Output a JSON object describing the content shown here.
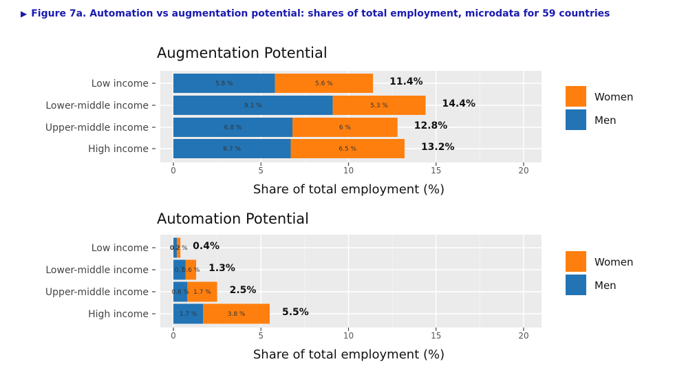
{
  "figure": {
    "title": "Figure 7a. Automation vs augmentation potential: shares of total employment, microdata for 59 countries",
    "marker_icon": "triangle-right-icon"
  },
  "colors": {
    "men": "#2274b5",
    "women": "#ff7f0e",
    "panel_bg": "#ebebeb",
    "grid": "#ffffff"
  },
  "chart_data": [
    {
      "type": "bar",
      "orientation": "horizontal",
      "stacked": true,
      "title": "Augmentation Potential",
      "xlabel": "Share of total employment (%)",
      "ylabel": "",
      "xlim": [
        0,
        20
      ],
      "xticks": [
        "0",
        "5",
        "10",
        "15",
        "20"
      ],
      "categories": [
        "Low income",
        "Lower-middle income",
        "Upper-middle income",
        "High income"
      ],
      "series": [
        {
          "name": "Men",
          "values": [
            5.8,
            9.1,
            6.8,
            6.7
          ],
          "labels": [
            "5.8 %",
            "9.1 %",
            "6.8 %",
            "6.7 %"
          ]
        },
        {
          "name": "Women",
          "values": [
            5.6,
            5.3,
            6.0,
            6.5
          ],
          "labels": [
            "5.6 %",
            "5.3 %",
            "6 %",
            "6.5 %"
          ]
        }
      ],
      "totals": [
        "11.4%",
        "14.4%",
        "12.8%",
        "13.2%"
      ],
      "legend": [
        "Women",
        "Men"
      ],
      "legend_position": "right",
      "grid": true
    },
    {
      "type": "bar",
      "orientation": "horizontal",
      "stacked": true,
      "title": "Automation Potential",
      "xlabel": "Share of total employment (%)",
      "ylabel": "",
      "xlim": [
        0,
        20
      ],
      "xticks": [
        "0",
        "5",
        "10",
        "15",
        "20"
      ],
      "categories": [
        "Low income",
        "Lower-middle income",
        "Upper-middle income",
        "High income"
      ],
      "series": [
        {
          "name": "Men",
          "values": [
            0.2,
            0.7,
            0.8,
            1.7
          ],
          "labels": [
            "0.2",
            "0.7",
            "0.8 %",
            "1.7 %"
          ]
        },
        {
          "name": "Women",
          "values": [
            0.2,
            0.6,
            1.7,
            3.8
          ],
          "labels": [
            "0.2 %",
            "0.6 %",
            "1.7 %",
            "3.8 %"
          ]
        }
      ],
      "totals": [
        "0.4%",
        "1.3%",
        "2.5%",
        "5.5%"
      ],
      "legend": [
        "Women",
        "Men"
      ],
      "legend_position": "right",
      "grid": true
    }
  ]
}
